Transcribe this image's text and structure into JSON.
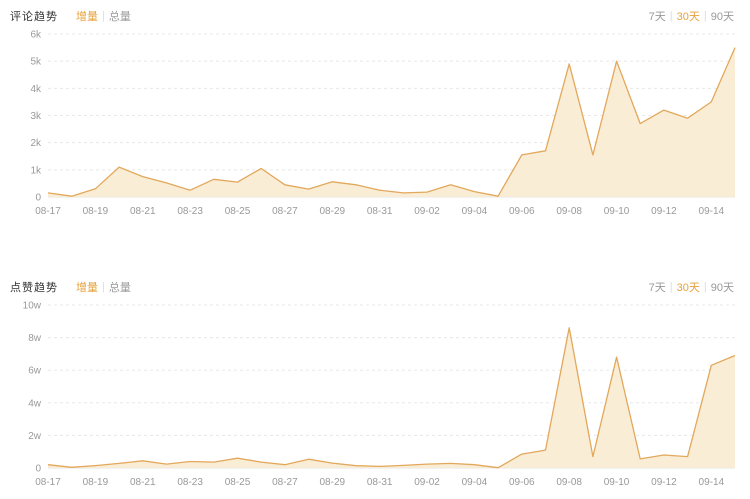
{
  "ui": {
    "separator": "|"
  },
  "colors": {
    "accent": "#E6A23C",
    "line": "#E2A85C",
    "fill": "#FAEBD0",
    "grid": "#E8E8E8",
    "baseline": "#E5E5E5",
    "axis_text": "#999999",
    "title_text": "#333333"
  },
  "panels": [
    {
      "title": "评论趋势",
      "tabs": [
        {
          "label": "增量",
          "active": true
        },
        {
          "label": "总量",
          "active": false
        }
      ],
      "ranges": [
        {
          "label": "7天",
          "active": false
        },
        {
          "label": "30天",
          "active": true
        },
        {
          "label": "90天",
          "active": false
        }
      ]
    },
    {
      "title": "点赞趋势",
      "tabs": [
        {
          "label": "增量",
          "active": true
        },
        {
          "label": "总量",
          "active": false
        }
      ],
      "ranges": [
        {
          "label": "7天",
          "active": false
        },
        {
          "label": "30天",
          "active": true
        },
        {
          "label": "90天",
          "active": false
        }
      ]
    }
  ],
  "chart_data": [
    {
      "type": "area",
      "title": "评论趋势 增量 30天",
      "legend": "none",
      "grid": "horizontal dashed",
      "x": [
        "08-17",
        "08-18",
        "08-19",
        "08-20",
        "08-21",
        "08-22",
        "08-23",
        "08-24",
        "08-25",
        "08-26",
        "08-27",
        "08-28",
        "08-29",
        "08-30",
        "08-31",
        "09-01",
        "09-02",
        "09-03",
        "09-04",
        "09-05",
        "09-06",
        "09-07",
        "09-08",
        "09-09",
        "09-10",
        "09-11",
        "09-12",
        "09-13",
        "09-14",
        "09-15"
      ],
      "values": [
        150,
        30,
        300,
        1100,
        750,
        520,
        250,
        650,
        550,
        1050,
        450,
        290,
        560,
        450,
        250,
        150,
        180,
        450,
        200,
        30,
        1550,
        1700,
        4900,
        1550,
        5000,
        2700,
        3200,
        2900,
        3500,
        5500
      ],
      "ylim": [
        0,
        6000
      ],
      "yticks": [
        {
          "v": 0,
          "label": "0"
        },
        {
          "v": 1000,
          "label": "1k"
        },
        {
          "v": 2000,
          "label": "2k"
        },
        {
          "v": 3000,
          "label": "3k"
        },
        {
          "v": 4000,
          "label": "4k"
        },
        {
          "v": 5000,
          "label": "5k"
        },
        {
          "v": 6000,
          "label": "6k"
        }
      ],
      "xtick_every": 2
    },
    {
      "type": "area",
      "title": "点赞趋势 增量 30天",
      "legend": "none",
      "grid": "horizontal dashed",
      "x": [
        "08-17",
        "08-18",
        "08-19",
        "08-20",
        "08-21",
        "08-22",
        "08-23",
        "08-24",
        "08-25",
        "08-26",
        "08-27",
        "08-28",
        "08-29",
        "08-30",
        "08-31",
        "09-01",
        "09-02",
        "09-03",
        "09-04",
        "09-05",
        "09-06",
        "09-07",
        "09-08",
        "09-09",
        "09-10",
        "09-11",
        "09-12",
        "09-13",
        "09-14",
        "09-15"
      ],
      "values": [
        2000,
        400,
        1500,
        2800,
        4400,
        2400,
        4000,
        3600,
        6000,
        3600,
        2000,
        5400,
        3000,
        1400,
        1000,
        1600,
        2400,
        2800,
        2000,
        200,
        8500,
        11000,
        86000,
        7000,
        68000,
        5600,
        8000,
        7000,
        63000,
        69000
      ],
      "ylim": [
        0,
        100000
      ],
      "yticks": [
        {
          "v": 0,
          "label": "0"
        },
        {
          "v": 20000,
          "label": "2w"
        },
        {
          "v": 40000,
          "label": "4w"
        },
        {
          "v": 60000,
          "label": "6w"
        },
        {
          "v": 80000,
          "label": "8w"
        },
        {
          "v": 100000,
          "label": "10w"
        }
      ],
      "xtick_every": 2
    }
  ]
}
